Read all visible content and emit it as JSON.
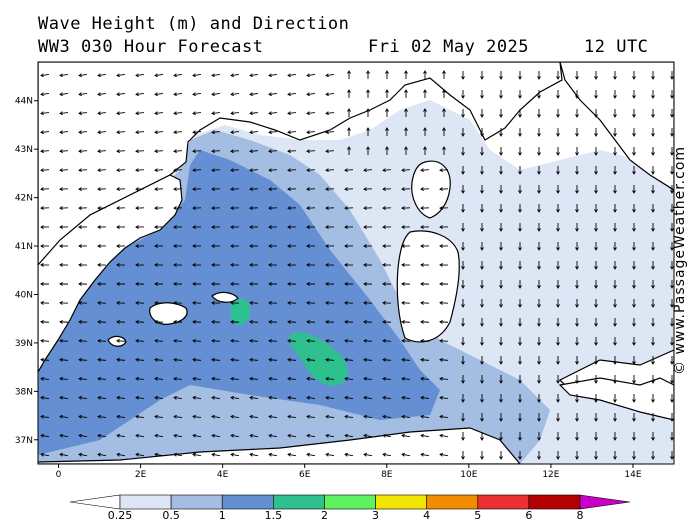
{
  "header": {
    "line1": "Wave Height (m) and Direction",
    "line2_left": "WW3 030 Hour Forecast",
    "line2_date": "Fri 02 May 2025",
    "line2_time": "12 UTC"
  },
  "credit": "© www.PassageWeather.com",
  "chart_data": {
    "type": "heatmap",
    "x_tick_labels": [
      "0",
      "2E",
      "4E",
      "6E",
      "8E",
      "10E",
      "12E",
      "14E"
    ],
    "y_tick_labels": [
      "37N",
      "38N",
      "39N",
      "40N",
      "41N",
      "42N",
      "43N",
      "44N"
    ],
    "xlim": [
      -0.5,
      15
    ],
    "ylim": [
      36.5,
      44.8
    ],
    "colorbar": {
      "labels": [
        "0.25",
        "0.5",
        "1",
        "1.5",
        "2",
        "3",
        "4",
        "5",
        "6",
        "8"
      ],
      "colors": [
        "#ffffff",
        "#dde6f4",
        "#a4bde2",
        "#648fd2",
        "#2ec18f",
        "#5ef25e",
        "#f2e600",
        "#f28c00",
        "#ea3030",
        "#b40000",
        "#c800c8"
      ]
    },
    "wave_field": {
      "land_color": "#ffffff",
      "regions": [
        {
          "height_class": "0.25-0.5",
          "color": "#dde6f4"
        },
        {
          "height_class": "0.5-1",
          "color": "#a4bde2"
        },
        {
          "height_class": "1-1.5",
          "color": "#648fd2"
        },
        {
          "height_class": "1.5-2",
          "color": "#2ec18f"
        }
      ]
    }
  }
}
